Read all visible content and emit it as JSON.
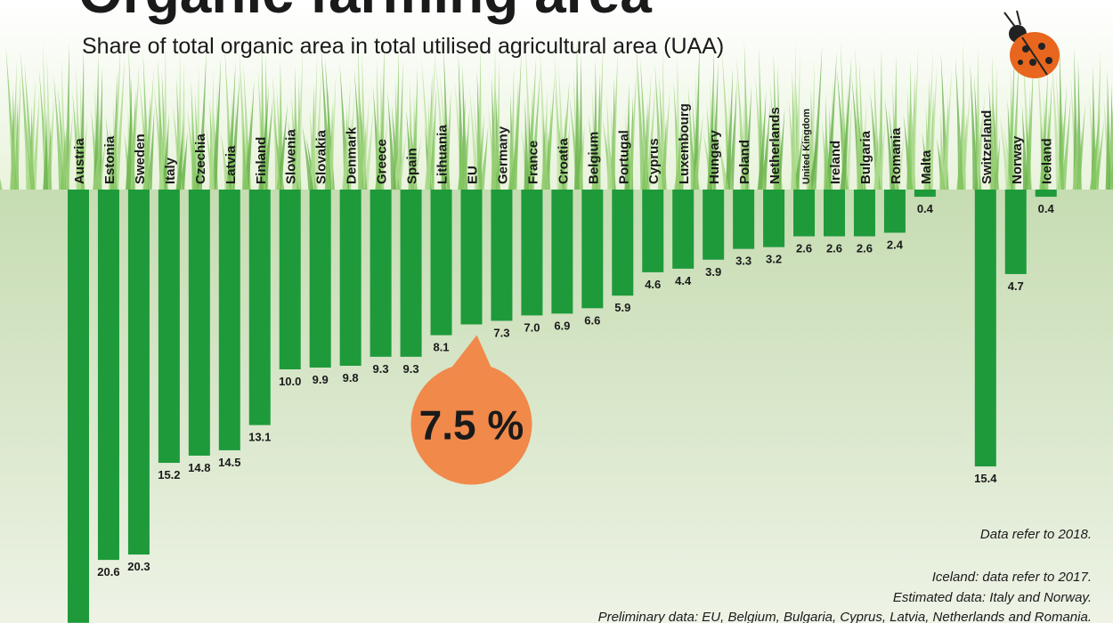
{
  "chart_data": {
    "type": "bar",
    "title": "Organic farming area",
    "subtitle": "Share of total organic area in total utilised agricultural area (UAA)",
    "categories": [
      "Austria",
      "Estonia",
      "Sweden",
      "Italy",
      "Czechia",
      "Latvia",
      "Finland",
      "Slovenia",
      "Slovakia",
      "Denmark",
      "Greece",
      "Spain",
      "Lithuania",
      "EU",
      "Germany",
      "France",
      "Croatia",
      "Belgium",
      "Portugal",
      "Cyprus",
      "Luxembourg",
      "Hungary",
      "Poland",
      "Netherlands",
      "United Kingdom",
      "Ireland",
      "Bulgaria",
      "Romania",
      "Malta",
      null,
      "Switzerland",
      "Norway",
      "Iceland"
    ],
    "values": [
      24.1,
      20.6,
      20.3,
      15.2,
      14.8,
      14.5,
      13.1,
      10.0,
      9.9,
      9.8,
      9.3,
      9.3,
      8.1,
      7.5,
      7.3,
      7.0,
      6.9,
      6.6,
      5.9,
      4.6,
      4.4,
      3.9,
      3.3,
      3.2,
      2.6,
      2.6,
      2.6,
      2.4,
      0.4,
      null,
      15.4,
      4.7,
      0.4
    ],
    "value_labels": [
      null,
      "20.6",
      "20.3",
      "15.2",
      "14.8",
      "14.5",
      "13.1",
      "10.0",
      "9.9",
      "9.8",
      "9.3",
      "9.3",
      "8.1",
      "7.5 %",
      "7.3",
      "7.0",
      "6.9",
      "6.6",
      "5.9",
      "4.6",
      "4.4",
      "3.9",
      "3.3",
      "3.2",
      "2.6",
      "2.6",
      "2.6",
      "2.4",
      "0.4",
      null,
      "15.4",
      "4.7",
      "0.4"
    ],
    "color": "#1e9a3b",
    "highlight_color": "#f0894a",
    "notes": [
      "Data refer to 2018.",
      "Iceland: data refer to 2017.",
      "Estimated data:  Italy and Norway.",
      "Preliminary data: EU, Belgium, Bulgaria, Cyprus, Latvia, Netherlands and Romania."
    ]
  }
}
